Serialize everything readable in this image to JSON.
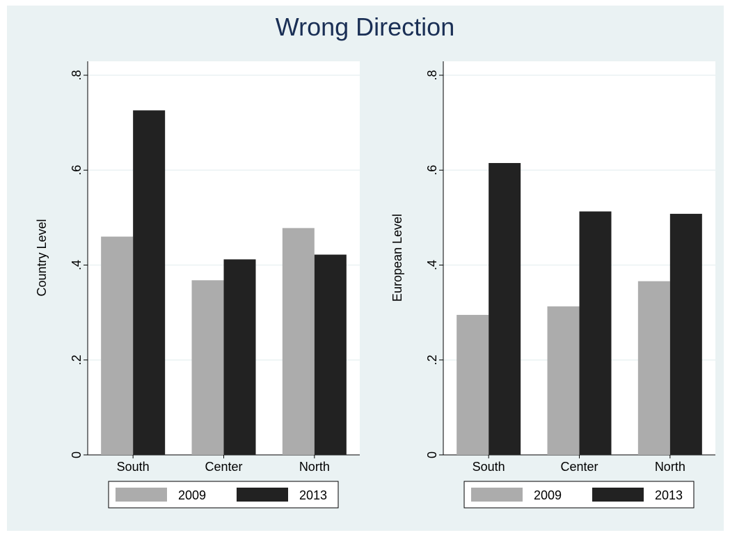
{
  "title": "Wrong Direction",
  "colors": {
    "s2009": "#acacac",
    "s2013": "#222222",
    "background": "#eaf2f3"
  },
  "chart_data": [
    {
      "type": "bar",
      "categories": [
        "South",
        "Center",
        "North"
      ],
      "series": [
        {
          "name": "2009",
          "values": [
            0.46,
            0.368,
            0.478
          ]
        },
        {
          "name": "2013",
          "values": [
            0.726,
            0.412,
            0.422
          ]
        }
      ],
      "ylabel": "Country Level",
      "ylim": [
        0,
        0.8
      ],
      "yticks": [
        0,
        0.2,
        0.4,
        0.6,
        0.8
      ],
      "ytick_labels": [
        "0",
        ".2",
        ".4",
        ".6",
        ".8"
      ],
      "grid": true,
      "legend_position": "bottom"
    },
    {
      "type": "bar",
      "categories": [
        "South",
        "Center",
        "North"
      ],
      "series": [
        {
          "name": "2009",
          "values": [
            0.295,
            0.313,
            0.366
          ]
        },
        {
          "name": "2013",
          "values": [
            0.615,
            0.513,
            0.508
          ]
        }
      ],
      "ylabel": "European Level",
      "ylim": [
        0,
        0.8
      ],
      "yticks": [
        0,
        0.2,
        0.4,
        0.6,
        0.8
      ],
      "ytick_labels": [
        "0",
        ".2",
        ".4",
        ".6",
        ".8"
      ],
      "grid": true,
      "legend_position": "bottom"
    }
  ]
}
